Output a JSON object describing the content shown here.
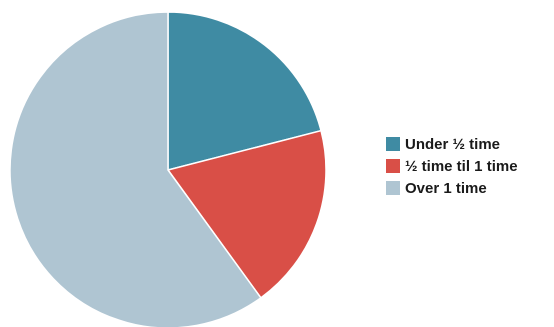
{
  "chart_data": {
    "type": "pie",
    "title": "",
    "start_angle_deg": 0,
    "direction": "clockwise",
    "slices": [
      {
        "label": "Under ½ time",
        "value": 21,
        "color": "#3f8ba3"
      },
      {
        "label": "½ time til 1 time",
        "value": 19,
        "color": "#d94f47"
      },
      {
        "label": "Over 1 time",
        "value": 60,
        "color": "#afc5d2"
      }
    ],
    "legend_position": "right"
  }
}
